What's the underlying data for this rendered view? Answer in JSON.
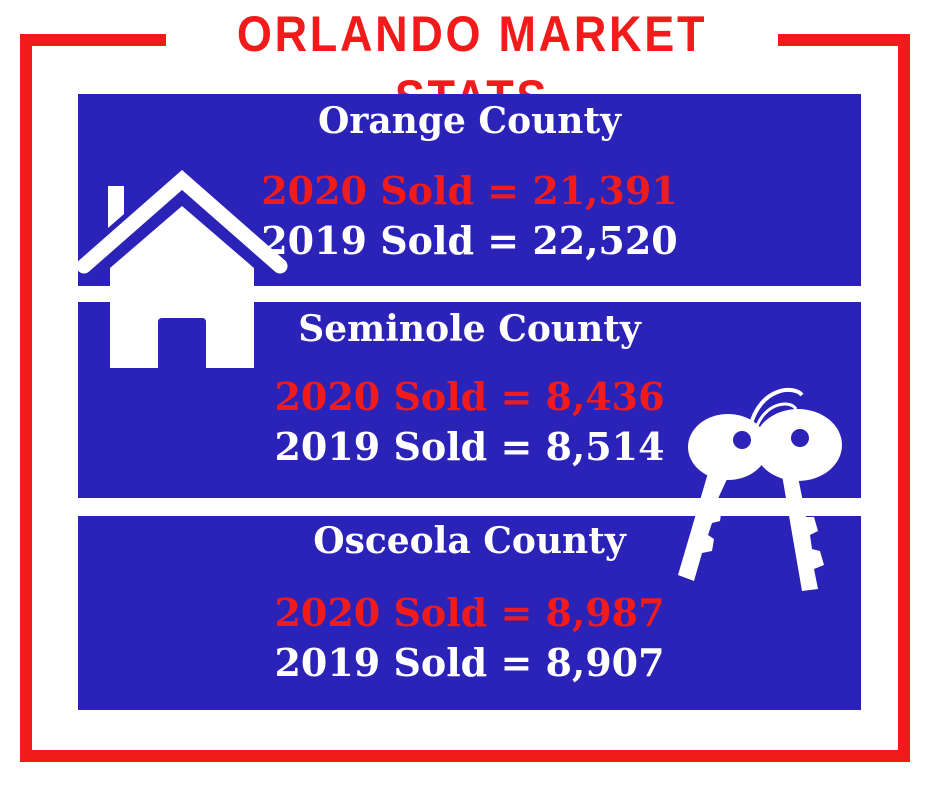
{
  "title": "ORLANDO MARKET STATS",
  "colors": {
    "accent_red": "#f21b1b",
    "panel_blue": "#2b22b8",
    "text_white": "#ffffff"
  },
  "counties": [
    {
      "name": "Orange County",
      "sold_2020": "2020 Sold = 21,391",
      "sold_2019": "2019 Sold = 22,520"
    },
    {
      "name": "Seminole County",
      "sold_2020": "2020 Sold = 8,436",
      "sold_2019": "2019 Sold = 8,514"
    },
    {
      "name": "Osceola County",
      "sold_2020": "2020 Sold = 8,987",
      "sold_2019": "2019 Sold = 8,907"
    }
  ],
  "icons": [
    "house-icon",
    "keys-icon"
  ]
}
